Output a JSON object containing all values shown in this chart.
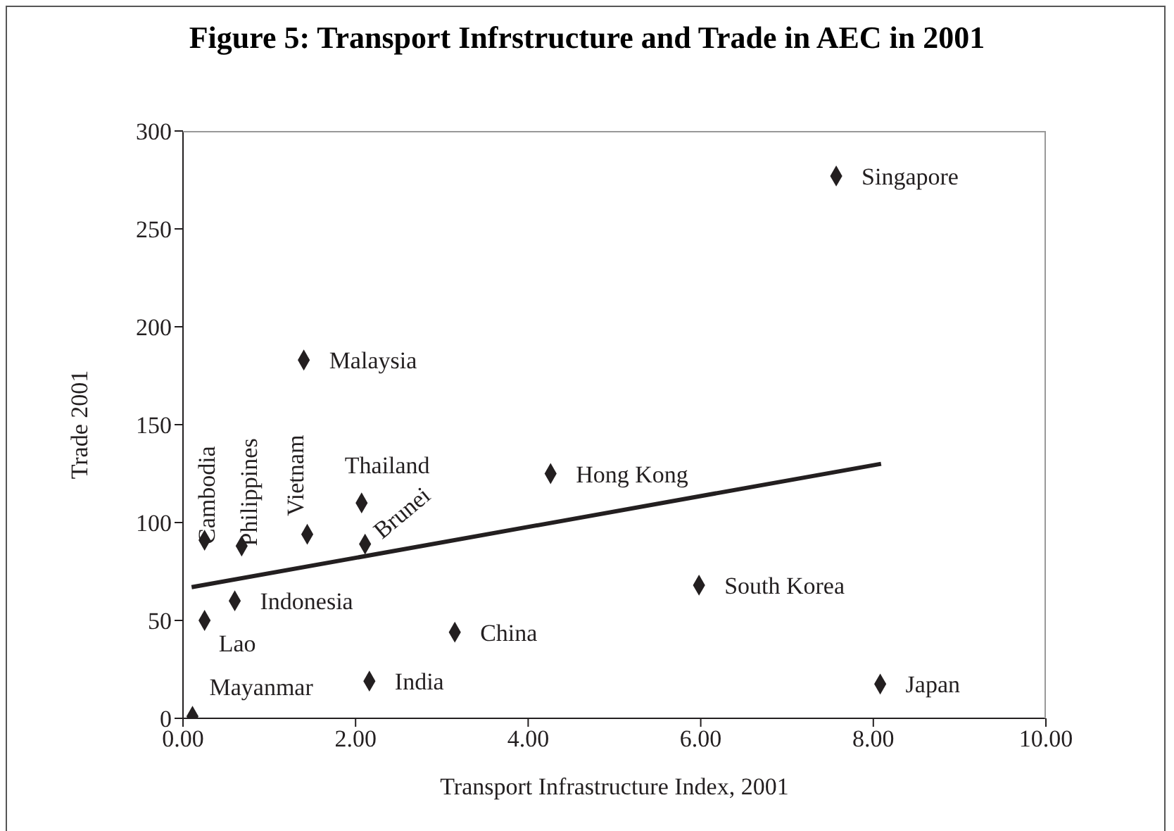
{
  "chart_data": {
    "type": "scatter",
    "title": "Figure 5: Transport Infrstructure and Trade in AEC in 2001",
    "xlabel": "Transport Infrastructure Index, 2001",
    "ylabel": "Trade 2001",
    "xlim": [
      0,
      10
    ],
    "xticks": [
      {
        "value": 0,
        "label": "0.00"
      },
      {
        "value": 2,
        "label": "2.00"
      },
      {
        "value": 4,
        "label": "4.00"
      },
      {
        "value": 6,
        "label": "6.00"
      },
      {
        "value": 8,
        "label": "8.00"
      },
      {
        "value": 10,
        "label": "10.00"
      }
    ],
    "ylim": [
      0,
      300
    ],
    "yticks": [
      0,
      50,
      100,
      150,
      200,
      250,
      300
    ],
    "grid": false,
    "marker": "diamond",
    "series": [
      {
        "color": "#231f20",
        "x": [
          0.11,
          0.25,
          0.25,
          0.68,
          0.6,
          1.44,
          1.4,
          2.07,
          2.11,
          2.16,
          3.15,
          4.26,
          7.57,
          5.98,
          8.08
        ],
        "values": [
          1,
          91,
          50,
          88,
          60,
          94,
          183,
          110,
          89,
          19,
          44,
          125,
          277,
          68,
          17.5
        ]
      },
      {
        "type": "line",
        "color": "#231f20",
        "marker": "none",
        "line_style": "solid",
        "x": [
          0.1,
          8.09
        ],
        "values": [
          67,
          130
        ]
      }
    ],
    "annotations": [
      {
        "text": "Mayanmar",
        "x": 0.11,
        "y": 1
      },
      {
        "text": "Cambodia",
        "x": 0.25,
        "y": 91
      },
      {
        "text": "Lao",
        "x": 0.25,
        "y": 50
      },
      {
        "text": "Philippines",
        "x": 0.68,
        "y": 88
      },
      {
        "text": "Indonesia",
        "x": 0.6,
        "y": 60
      },
      {
        "text": "Vietnam",
        "x": 1.44,
        "y": 94
      },
      {
        "text": "Malaysia",
        "x": 1.4,
        "y": 183
      },
      {
        "text": "Thailand",
        "x": 2.07,
        "y": 110
      },
      {
        "text": "Brunei",
        "x": 2.11,
        "y": 89
      },
      {
        "text": "India",
        "x": 2.16,
        "y": 19
      },
      {
        "text": "China",
        "x": 3.15,
        "y": 44
      },
      {
        "text": "Hong Kong",
        "x": 4.26,
        "y": 125
      },
      {
        "text": "Singapore",
        "x": 7.57,
        "y": 277
      },
      {
        "text": "South Korea",
        "x": 5.98,
        "y": 68
      },
      {
        "text": "Japan",
        "x": 8.08,
        "y": 17.5
      }
    ]
  }
}
